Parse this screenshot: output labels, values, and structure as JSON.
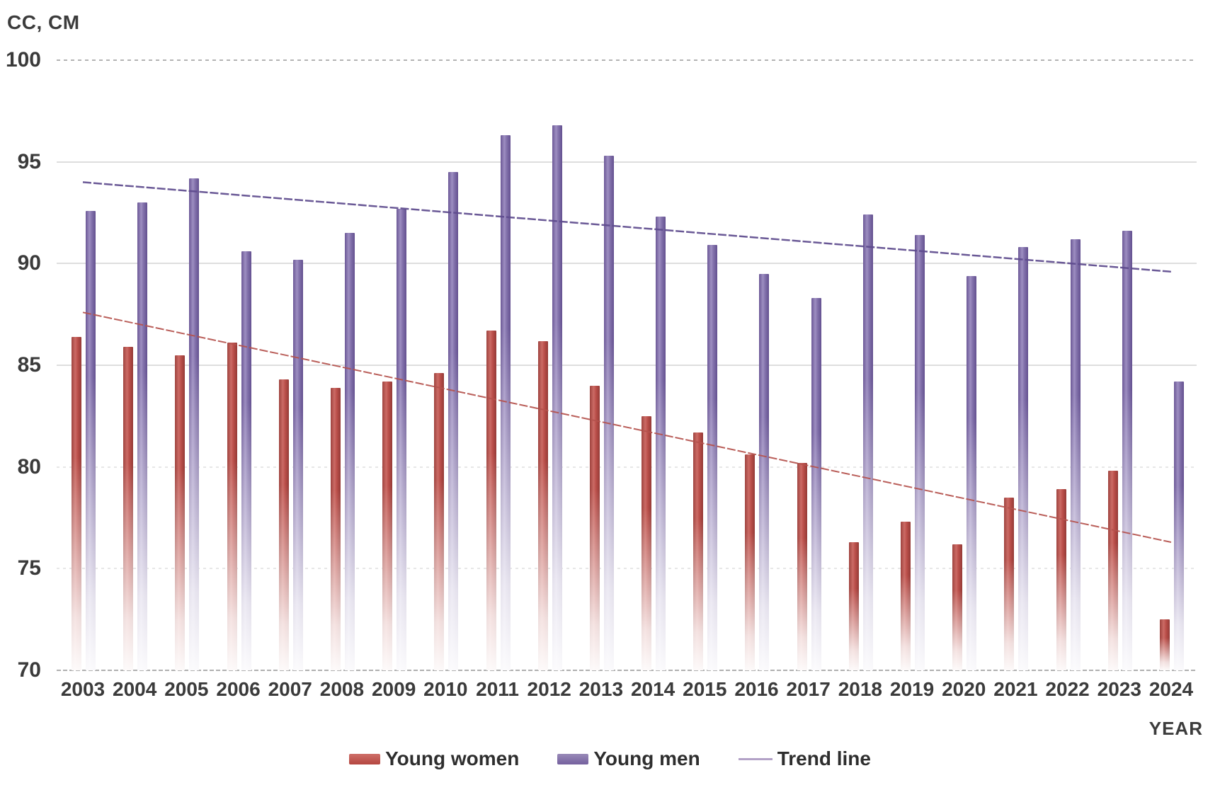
{
  "chart_data": {
    "type": "bar",
    "title_y": "CC, CM",
    "title_x": "YEAR",
    "categories": [
      "2003",
      "2004",
      "2005",
      "2006",
      "2007",
      "2008",
      "2009",
      "2010",
      "2011",
      "2012",
      "2013",
      "2014",
      "2015",
      "2016",
      "2017",
      "2018",
      "2019",
      "2020",
      "2021",
      "2022",
      "2023",
      "2024"
    ],
    "series": [
      {
        "name": "Young women",
        "color_key": "women",
        "values": [
          86.4,
          85.9,
          85.5,
          86.1,
          84.3,
          83.9,
          84.2,
          84.6,
          86.7,
          86.2,
          84.0,
          82.5,
          81.7,
          80.6,
          80.2,
          76.3,
          77.3,
          76.2,
          78.5,
          78.9,
          79.8,
          72.5
        ]
      },
      {
        "name": "Young men",
        "color_key": "men",
        "values": [
          92.6,
          93.0,
          94.2,
          90.6,
          90.2,
          91.5,
          92.7,
          94.5,
          96.3,
          96.8,
          95.3,
          92.3,
          90.9,
          89.5,
          88.3,
          92.4,
          91.4,
          89.4,
          90.8,
          91.2,
          91.6,
          84.2
        ]
      }
    ],
    "trend_lines": [
      {
        "name": "young-men-trend",
        "start_value": 94.0,
        "end_value": 89.6,
        "color": "#5e4b8e",
        "width": 2.5
      },
      {
        "name": "young-women-trend",
        "start_value": 87.6,
        "end_value": 76.3,
        "color": "#b5524d",
        "width": 2
      }
    ],
    "legend": [
      {
        "label": "Young women",
        "swatch": "sw-bar sw-women"
      },
      {
        "label": "Young men",
        "swatch": "sw-bar sw-men"
      },
      {
        "label": "Trend line",
        "swatch": "sw-line"
      }
    ],
    "ylim": [
      70,
      100
    ],
    "yticks": [
      70,
      75,
      80,
      85,
      90,
      95,
      100
    ],
    "grid": "horizontal",
    "legend_position": "bottom-center"
  },
  "colors": {
    "women_bar": "#bb4f4a",
    "men_bar": "#7c68a6",
    "women_trend": "#b5524d",
    "men_trend": "#5e4b8e",
    "trend_legend_swatch": "#b3a2c7",
    "gridline": "#dedede",
    "text": "#3b3b3b"
  }
}
